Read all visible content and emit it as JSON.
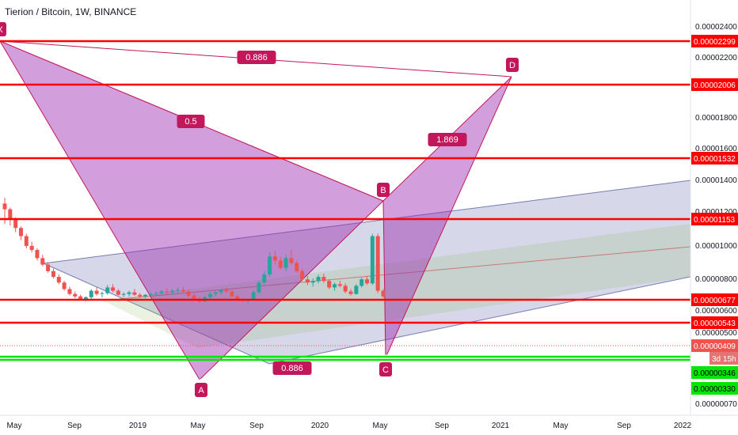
{
  "header": {
    "title": "Tierion / Bitcoin, 1W, BINANCE"
  },
  "colors": {
    "up": "#26a69a",
    "down": "#ef5350",
    "level": "#ff0000",
    "support": "#00e600",
    "pattern": "#c2185b",
    "pattern_fill": "#9c27b0",
    "channel": "#1a237e",
    "channel_mid": "#7cb342"
  },
  "chart_data": {
    "type": "candlestick",
    "symbol": "TNB/BTC",
    "interval": "1W",
    "exchange": "BINANCE",
    "y_ticks": [
      "0.00002400",
      "0.00002200",
      "0.00001800",
      "0.00001600",
      "0.00001400",
      "0.00001200",
      "0.00001000",
      "0.00000800",
      "0.00000600",
      "0.00000500",
      "0.00000070"
    ],
    "x_labels": [
      "May",
      "Sep",
      "2019",
      "May",
      "Sep",
      "2020",
      "May",
      "Sep",
      "2021",
      "May",
      "Sep",
      "2022"
    ],
    "horizontal_levels": [
      {
        "label": "0.00002299",
        "value": 2.299e-05
      },
      {
        "label": "0.00002006",
        "value": 2.006e-05
      },
      {
        "label": "0.00001532",
        "value": 1.532e-05
      },
      {
        "label": "0.00001153",
        "value": 1.153e-05
      },
      {
        "label": "0.00000677",
        "value": 6.77e-06
      },
      {
        "label": "0.00000543",
        "value": 5.43e-06
      }
    ],
    "support_levels": [
      {
        "label": "0.00000346",
        "value": 3.46e-06
      },
      {
        "label": "0.00000330",
        "value": 3.3e-06
      }
    ],
    "last_price": {
      "label": "0.00000409",
      "value": 4.09e-06,
      "countdown": "3d 15h"
    },
    "harmonic_points": [
      {
        "name": "X",
        "date": "2018-04",
        "price": 2.3e-05
      },
      {
        "name": "A",
        "date": "2019-05",
        "price": 3.4e-06
      },
      {
        "name": "B",
        "date": "2020-05",
        "price": 1.18e-05
      },
      {
        "name": "C",
        "date": "2020-05",
        "price": 3.9e-06
      },
      {
        "name": "D",
        "date": "2021-02",
        "price": 2.06e-05
      }
    ],
    "ratios": [
      {
        "label": "0.886",
        "leg": "XD"
      },
      {
        "label": "0.5",
        "leg": "XB"
      },
      {
        "label": "1.869",
        "leg": "BD"
      },
      {
        "label": "0.886",
        "leg": "AC"
      }
    ],
    "price_series": [
      [
        1.55e-05,
        1.62e-05,
        1.3e-05,
        1.48e-05
      ],
      [
        1.48e-05,
        1.5e-05,
        1.28e-05,
        1.35e-05
      ],
      [
        1.35e-05,
        1.38e-05,
        1.2e-05,
        1.25e-05
      ],
      [
        1.25e-05,
        1.27e-05,
        1.1e-05,
        1.15e-05
      ],
      [
        1.15e-05,
        1.18e-05,
        1e-05,
        1.03e-05
      ],
      [
        1.03e-05,
        1.08e-05,
        9.5e-06,
        9.8e-06
      ],
      [
        9.8e-06,
        1e-05,
        8.5e-06,
        8.8e-06
      ],
      [
        8.8e-06,
        9.2e-06,
        7.8e-06,
        8e-06
      ],
      [
        8e-06,
        8.3e-06,
        7e-06,
        7.2e-06
      ],
      [
        7.2e-06,
        7.5e-06,
        6.3e-06,
        6.5e-06
      ],
      [
        6.5e-06,
        6.8e-06,
        5.6e-06,
        5.8e-06
      ],
      [
        5.8e-06,
        6e-06,
        4.8e-06,
        5e-06
      ],
      [
        5e-06,
        5.3e-06,
        4.2e-06,
        4.4e-06
      ],
      [
        4.4e-06,
        4.7e-06,
        3.9e-06,
        4.1e-06
      ],
      [
        4.1e-06,
        4.3e-06,
        3.6e-06,
        3.8e-06
      ],
      [
        3.8e-06,
        4.1e-06,
        3.5e-06,
        4e-06
      ],
      [
        4e-06,
        5e-06,
        3.8e-06,
        4.8e-06
      ],
      [
        4.8e-06,
        5.2e-06,
        4.2e-06,
        4.4e-06
      ],
      [
        4.4e-06,
        4.7e-06,
        4e-06,
        4.5e-06
      ],
      [
        4.5e-06,
        5.5e-06,
        4.3e-06,
        5.2e-06
      ],
      [
        5.2e-06,
        5.6e-06,
        4.6e-06,
        4.8e-06
      ],
      [
        4.8e-06,
        5e-06,
        4.2e-06,
        4.3e-06
      ],
      [
        4.3e-06,
        4.6e-06,
        4e-06,
        4.4e-06
      ],
      [
        4.4e-06,
        4.8e-06,
        4.1e-06,
        4.6e-06
      ],
      [
        4.6e-06,
        5e-06,
        4.2e-06,
        4.3e-06
      ],
      [
        4.3e-06,
        4.5e-06,
        3.9e-06,
        4.1e-06
      ],
      [
        4.1e-06,
        4.4e-06,
        3.9e-06,
        4.3e-06
      ],
      [
        4.3e-06,
        4.6e-06,
        4.1e-06,
        4.4e-06
      ],
      [
        4.4e-06,
        4.7e-06,
        4.2e-06,
        4.5e-06
      ],
      [
        4.5e-06,
        4.9e-06,
        4.3e-06,
        4.7e-06
      ],
      [
        4.7e-06,
        5.1e-06,
        4.4e-06,
        4.6e-06
      ],
      [
        4.6e-06,
        5e-06,
        4.3e-06,
        4.8e-06
      ],
      [
        4.8e-06,
        5.2e-06,
        4.5e-06,
        4.9e-06
      ],
      [
        4.9e-06,
        5.3e-06,
        4.6e-06,
        4.7e-06
      ],
      [
        4.7e-06,
        5e-06,
        4e-06,
        4.2e-06
      ],
      [
        4.2e-06,
        4.5e-06,
        3.6e-06,
        3.8e-06
      ],
      [
        3.8e-06,
        4.1e-06,
        3.3e-06,
        3.5e-06
      ],
      [
        3.5e-06,
        4.2e-06,
        3.4e-06,
        4e-06
      ],
      [
        4e-06,
        4.6e-06,
        3.8e-06,
        4.4e-06
      ],
      [
        4.4e-06,
        4.8e-06,
        4.1e-06,
        4.6e-06
      ],
      [
        4.6e-06,
        5e-06,
        4.3e-06,
        4.9e-06
      ],
      [
        4.9e-06,
        5.2e-06,
        4.5e-06,
        4.7e-06
      ],
      [
        4.7e-06,
        4.9e-06,
        4e-06,
        4.1e-06
      ],
      [
        4.1e-06,
        4.3e-06,
        3.6e-06,
        3.7e-06
      ],
      [
        3.7e-06,
        3.9e-06,
        3.4e-06,
        3.6e-06
      ],
      [
        3.6e-06,
        3.8e-06,
        3.3e-06,
        3.7e-06
      ],
      [
        3.7e-06,
        4.8e-06,
        3.6e-06,
        4.6e-06
      ],
      [
        4.6e-06,
        6e-06,
        4.4e-06,
        5.8e-06
      ],
      [
        5.8e-06,
        7.2e-06,
        5.5e-06,
        6.8e-06
      ],
      [
        6.8e-06,
        9.5e-06,
        6.5e-06,
        9e-06
      ],
      [
        9e-06,
        9.7e-06,
        8e-06,
        8.5e-06
      ],
      [
        8.5e-06,
        9e-06,
        7.4e-06,
        7.6e-06
      ],
      [
        7.6e-06,
        9.2e-06,
        7.2e-06,
        8.8e-06
      ],
      [
        8.8e-06,
        9.8e-06,
        8e-06,
        8.2e-06
      ],
      [
        8.2e-06,
        8.5e-06,
        7e-06,
        7.2e-06
      ],
      [
        7.2e-06,
        7.5e-06,
        6e-06,
        6.2e-06
      ],
      [
        6.2e-06,
        6.6e-06,
        5.5e-06,
        5.8e-06
      ],
      [
        5.8e-06,
        6.3e-06,
        5.3e-06,
        6e-06
      ],
      [
        6e-06,
        6.8e-06,
        5.7e-06,
        6.5e-06
      ],
      [
        6.5e-06,
        6.9e-06,
        5.8e-06,
        6e-06
      ],
      [
        6e-06,
        6.2e-06,
        5e-06,
        5.2e-06
      ],
      [
        5.2e-06,
        5.8e-06,
        4.8e-06,
        5.6e-06
      ],
      [
        5.6e-06,
        6e-06,
        5.2e-06,
        5.4e-06
      ],
      [
        5.4e-06,
        5.7e-06,
        4.5e-06,
        4.7e-06
      ],
      [
        4.7e-06,
        5e-06,
        4.2e-06,
        4.4e-06
      ],
      [
        4.4e-06,
        5.6e-06,
        4.3e-06,
        5.4e-06
      ],
      [
        5.4e-06,
        6.4e-06,
        5.2e-06,
        6.2e-06
      ],
      [
        6.2e-06,
        6.6e-06,
        5.5e-06,
        5.7e-06
      ],
      [
        5.7e-06,
        1.18e-05,
        5.5e-06,
        1.15e-05
      ],
      [
        1.15e-05,
        1.18e-05,
        4.5e-06,
        4.8e-06
      ],
      [
        4.8e-06,
        5e-06,
        3.9e-06,
        4.1e-06
      ]
    ]
  }
}
